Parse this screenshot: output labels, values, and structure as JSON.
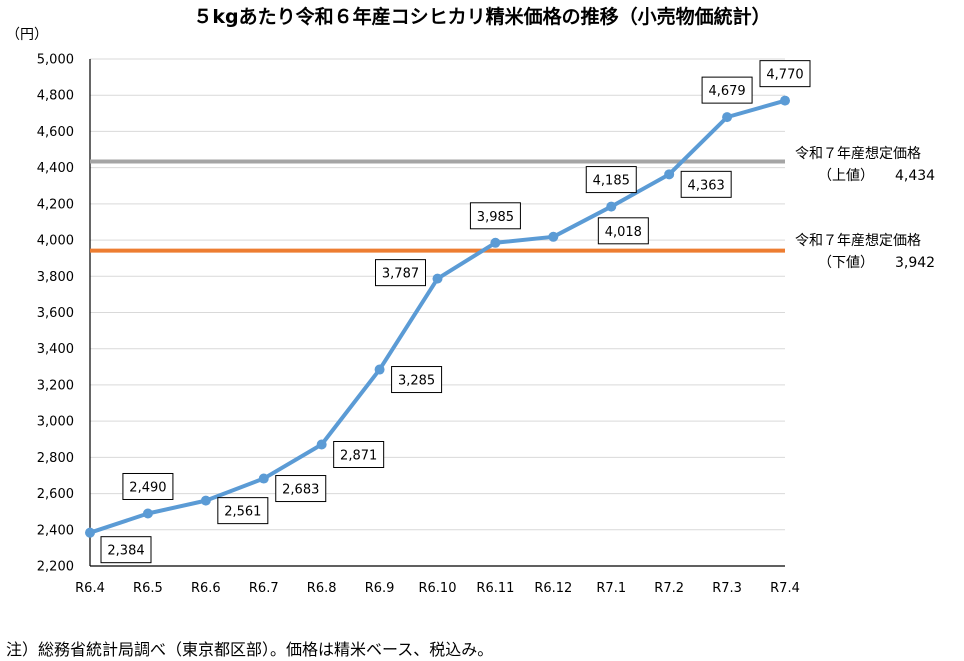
{
  "chart_data": {
    "type": "line",
    "title": "５kgあたり令和６年産コシヒカリ精米価格の推移（小売物価統計）",
    "ylabel": "（円）",
    "xlabel": "",
    "ylim": [
      2200,
      5000
    ],
    "ytick_step": 200,
    "ytick_labels": [
      "2,200",
      "2,400",
      "2,600",
      "2,800",
      "3,000",
      "3,200",
      "3,400",
      "3,600",
      "3,800",
      "4,000",
      "4,200",
      "4,400",
      "4,600",
      "4,800",
      "5,000"
    ],
    "categories": [
      "R6.4",
      "R6.5",
      "R6.6",
      "R6.7",
      "R6.8",
      "R6.9",
      "R6.10",
      "R6.11",
      "R6.12",
      "R7.1",
      "R7.2",
      "R7.3",
      "R7.4"
    ],
    "series": [
      {
        "values": [
          2384,
          2490,
          2561,
          2683,
          2871,
          3285,
          3787,
          3985,
          4018,
          4185,
          4363,
          4679,
          4770
        ],
        "labels": [
          "2,384",
          "2,490",
          "2,561",
          "2,683",
          "2,871",
          "3,285",
          "3,787",
          "3,985",
          "4,018",
          "4,185",
          "4,363",
          "4,679",
          "4,770"
        ],
        "color": "#5b9bd5"
      }
    ],
    "reference_lines": [
      {
        "value": 4434,
        "line1": "令和７年産想定価格",
        "line2": "（上値）",
        "value_label": "4,434",
        "color": "#a5a5a5"
      },
      {
        "value": 3942,
        "line1": "令和７年産想定価格",
        "line2": "（下値）",
        "value_label": "3,942",
        "color": "#ed7d31"
      }
    ],
    "grid": true,
    "legend": "none"
  },
  "note": "注）総務省統計局調べ（東京都区部）。価格は精米ベース、税込み。"
}
